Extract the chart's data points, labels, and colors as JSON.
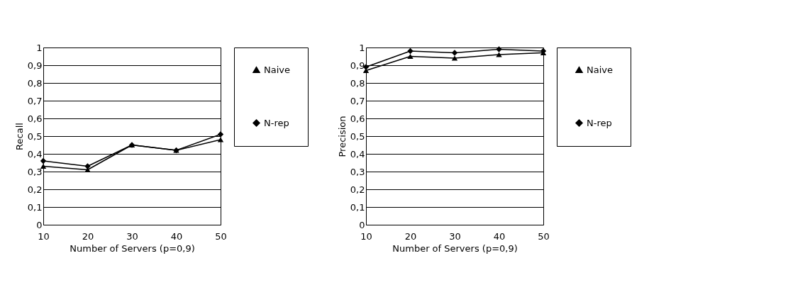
{
  "chart_data": [
    {
      "type": "line",
      "xlabel": "Number of Servers (p=0,9)",
      "ylabel": "Recall",
      "categories": [
        "10",
        "20",
        "30",
        "40",
        "50"
      ],
      "series": [
        {
          "name": "Naive",
          "color": "#000000",
          "marker": "triangle",
          "values": [
            0.33,
            0.31,
            0.45,
            0.42,
            0.48
          ]
        },
        {
          "name": "N-rep",
          "color": "#000000",
          "marker": "diamond",
          "values": [
            0.36,
            0.33,
            0.45,
            0.42,
            0.51
          ]
        }
      ],
      "ylim": [
        0,
        1
      ],
      "yticks": [
        0,
        {
          "value": 0.1,
          "label": "0,1"
        },
        {
          "value": 0.2,
          "label": "0,2"
        },
        {
          "value": 0.3,
          "label": "0,3"
        },
        {
          "value": 0.4,
          "label": "0,4"
        },
        {
          "value": 0.5,
          "label": "0,5"
        },
        {
          "value": 0.6,
          "label": "0,6"
        },
        {
          "value": 0.7,
          "label": "0,7"
        },
        {
          "value": 0.8,
          "label": "0,8"
        },
        {
          "value": 0.9,
          "label": "0,9"
        },
        1
      ],
      "grid": "y",
      "legend": "right"
    },
    {
      "type": "line",
      "xlabel": "Number of Servers (p=0,9)",
      "ylabel": "Precision",
      "categories": [
        "10",
        "20",
        "30",
        "40",
        "50"
      ],
      "series": [
        {
          "name": "Naive",
          "color": "#000000",
          "marker": "triangle",
          "values": [
            0.87,
            0.95,
            0.94,
            0.96,
            0.97
          ]
        },
        {
          "name": "N-rep",
          "color": "#000000",
          "marker": "diamond",
          "values": [
            0.89,
            0.98,
            0.97,
            0.99,
            0.98
          ]
        }
      ],
      "ylim": [
        0,
        1
      ],
      "yticks": [
        0,
        {
          "value": 0.1,
          "label": "0,1"
        },
        {
          "value": 0.2,
          "label": "0,2"
        },
        {
          "value": 0.3,
          "label": "0,3"
        },
        {
          "value": 0.4,
          "label": "0,4"
        },
        {
          "value": 0.5,
          "label": "0,5"
        },
        {
          "value": 0.6,
          "label": "0,6"
        },
        {
          "value": 0.7,
          "label": "0,7"
        },
        {
          "value": 0.8,
          "label": "0,8"
        },
        {
          "value": 0.9,
          "label": "0,9"
        },
        1
      ],
      "grid": "y",
      "legend": "right"
    }
  ]
}
